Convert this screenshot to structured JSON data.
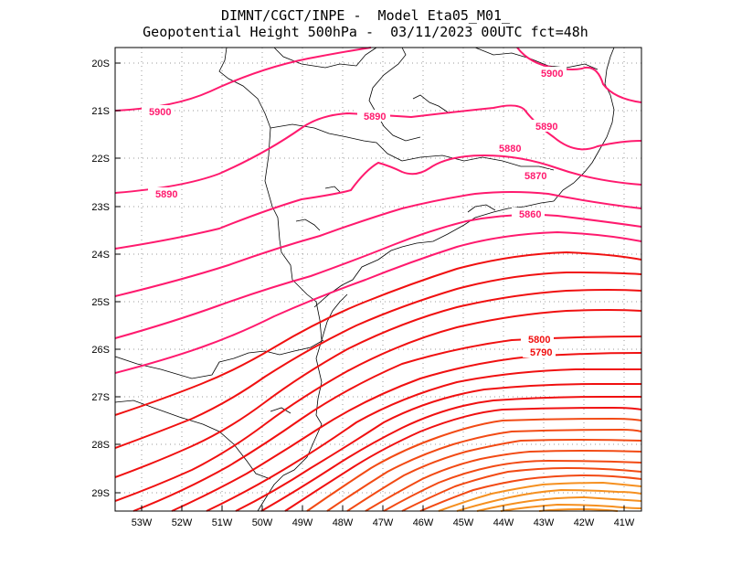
{
  "title_line1": "DIMNT/CGCT/INPE -  Model Eta05_M01_",
  "title_line2": "Geopotential Height 500hPa -  03/11/2023 00UTC fct=48h",
  "lat_labels": [
    "20S",
    "21S",
    "22S",
    "23S",
    "24S",
    "25S",
    "26S",
    "27S",
    "28S",
    "29S"
  ],
  "lon_labels": [
    "53W",
    "52W",
    "51W",
    "50W",
    "49W",
    "48W",
    "47W",
    "46W",
    "45W",
    "44W",
    "43W",
    "42W",
    "41W"
  ],
  "contour_labels": {
    "l5900a": "5900",
    "l5900b": "5900",
    "l5890a": "5890",
    "l5890b": "5890",
    "l5890c": "5890",
    "l5880": "5880",
    "l5870": "5870",
    "l5860": "5860",
    "l5800": "5800",
    "l5790": "5790"
  },
  "colors": {
    "pink": "#ff1a6e",
    "red": "#f01010",
    "orange": "#f5a020",
    "coast": "#000000",
    "grid": "#999999"
  },
  "chart_data": {
    "type": "contour",
    "field": "Geopotential Height 500hPa",
    "units": "gpm",
    "lon_range": [
      -53.6,
      -40.5
    ],
    "lat_range": [
      -29.4,
      -19.75
    ],
    "contour_interval": 10,
    "labeled_levels": [
      5900,
      5890,
      5880,
      5870,
      5860,
      5800,
      5790
    ],
    "max_level": 5900,
    "min_level_approx": 5650
  }
}
